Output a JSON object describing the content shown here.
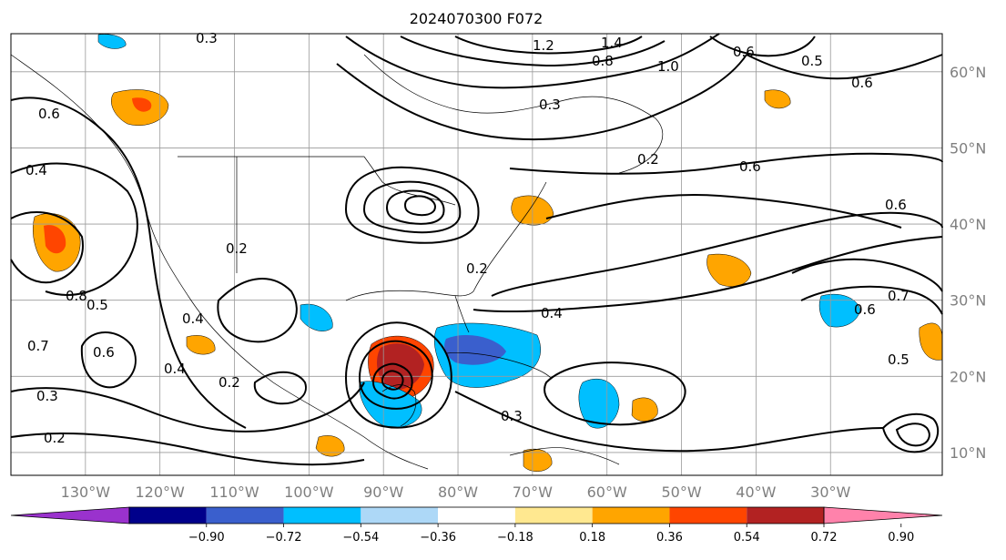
{
  "title": "2024070300 F072",
  "map": {
    "lon_range": [
      -140,
      -15
    ],
    "lat_range": [
      7,
      65
    ],
    "lon_ticks": [
      {
        "value": -130,
        "label": "130°W"
      },
      {
        "value": -120,
        "label": "120°W"
      },
      {
        "value": -110,
        "label": "110°W"
      },
      {
        "value": -100,
        "label": "100°W"
      },
      {
        "value": -90,
        "label": "90°W"
      },
      {
        "value": -80,
        "label": "80°W"
      },
      {
        "value": -70,
        "label": "70°W"
      },
      {
        "value": -60,
        "label": "60°W"
      },
      {
        "value": -50,
        "label": "50°W"
      },
      {
        "value": -40,
        "label": "40°W"
      },
      {
        "value": -30,
        "label": "30°W"
      }
    ],
    "lat_ticks": [
      {
        "value": 60,
        "label": "60°N"
      },
      {
        "value": 50,
        "label": "50°N"
      },
      {
        "value": 40,
        "label": "40°N"
      },
      {
        "value": 30,
        "label": "30°N"
      },
      {
        "value": 20,
        "label": "20°N"
      },
      {
        "value": 10,
        "label": "10°N"
      }
    ]
  },
  "colorbar": {
    "labels": [
      "−0.90",
      "−0.72",
      "−0.54",
      "−0.36",
      "−0.18",
      "0.18",
      "0.36",
      "0.54",
      "0.72",
      "0.90"
    ],
    "colors": [
      "#9a32cd",
      "#00008b",
      "#3a5fcd",
      "#00bfff",
      "#add8f7",
      "#ffffff",
      "#ffe890",
      "#ffa500",
      "#ff4500",
      "#b22222",
      "#ff82ab"
    ]
  },
  "chart_data": {
    "type": "contour",
    "title": "2024070300 F072",
    "contour_labels": [
      "0.3",
      "1.2",
      "1.4",
      "0.8",
      "1.0",
      "0.6",
      "0.5",
      "0.6",
      "0.6",
      "0.4",
      "0.2",
      "0.3",
      "0.4",
      "0.2",
      "0.6",
      "0.6",
      "0.2",
      "0.8",
      "0.5",
      "0.7",
      "0.6",
      "0.3",
      "0.4",
      "0.2",
      "0.2",
      "0.4",
      "0.3",
      "0.7",
      "0.6",
      "0.5"
    ],
    "shading_levels": [
      -0.9,
      -0.72,
      -0.54,
      -0.36,
      -0.18,
      0.18,
      0.36,
      0.54,
      0.72,
      0.9
    ],
    "xlim": [
      -140,
      -15
    ],
    "ylim": [
      7,
      65
    ]
  }
}
